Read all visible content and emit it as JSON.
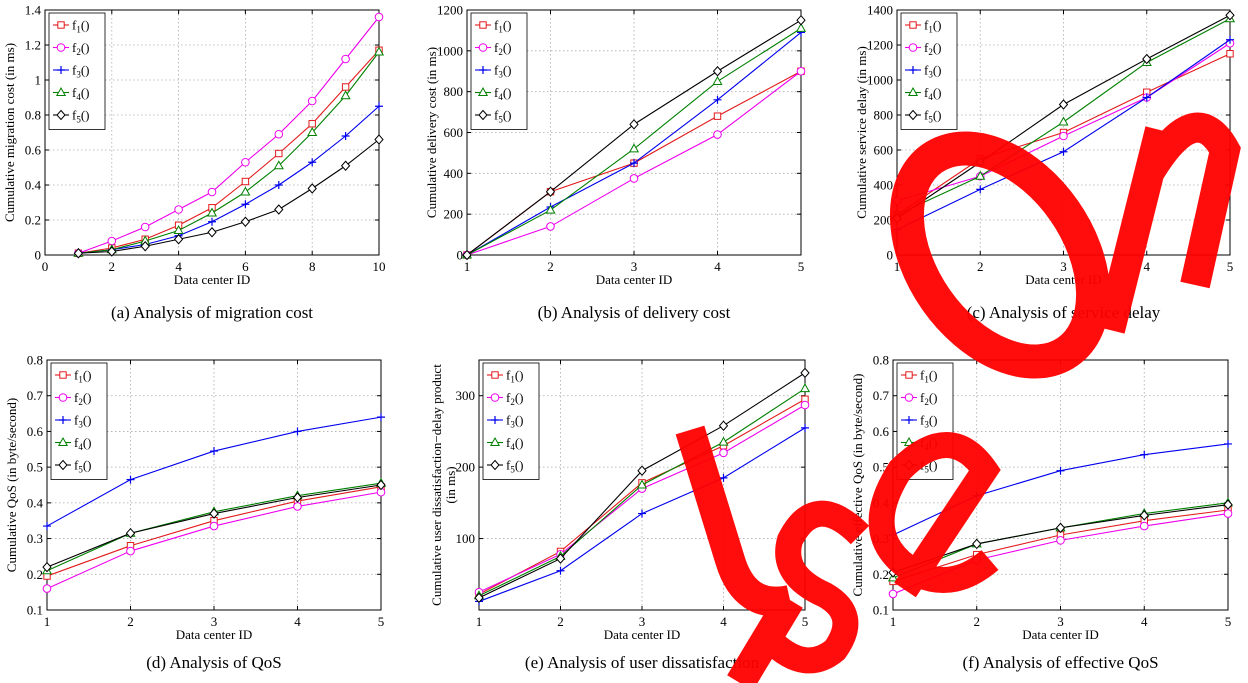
{
  "chart_data": [
    {
      "type": "line",
      "caption": "(a) Analysis of migration cost",
      "xlabel": "Data center ID",
      "ylabel": "Cumulative migration cost (in ms)",
      "xlim": [
        0,
        10
      ],
      "ylim": [
        0,
        1.4
      ],
      "xticks": [
        0,
        2,
        4,
        6,
        8,
        10
      ],
      "yticks": [
        0,
        0.2,
        0.4,
        0.6,
        0.8,
        1,
        1.2,
        1.4
      ],
      "grid": true,
      "legend": "top-left",
      "x": [
        1,
        2,
        3,
        4,
        5,
        6,
        7,
        8,
        9,
        10
      ],
      "series": [
        {
          "name": "f1()",
          "values": [
            0.01,
            0.04,
            0.09,
            0.17,
            0.27,
            0.42,
            0.58,
            0.75,
            0.96,
            1.17
          ]
        },
        {
          "name": "f2()",
          "values": [
            0.01,
            0.08,
            0.16,
            0.26,
            0.36,
            0.53,
            0.69,
            0.88,
            1.12,
            1.36
          ]
        },
        {
          "name": "f3()",
          "values": [
            0.01,
            0.03,
            0.06,
            0.11,
            0.19,
            0.29,
            0.4,
            0.53,
            0.68,
            0.85
          ]
        },
        {
          "name": "f4()",
          "values": [
            0.01,
            0.03,
            0.08,
            0.14,
            0.24,
            0.36,
            0.51,
            0.7,
            0.91,
            1.16
          ]
        },
        {
          "name": "f5()",
          "values": [
            0.01,
            0.02,
            0.05,
            0.09,
            0.13,
            0.19,
            0.26,
            0.38,
            0.51,
            0.66
          ]
        }
      ]
    },
    {
      "type": "line",
      "caption": "(b) Analysis of delivery cost",
      "xlabel": "Data center ID",
      "ylabel": "Cumulative delivery cost (in ms)",
      "xlim": [
        1,
        5
      ],
      "ylim": [
        0,
        1200
      ],
      "xticks": [
        1,
        2,
        3,
        4,
        5
      ],
      "yticks": [
        0,
        200,
        400,
        600,
        800,
        1000,
        1200
      ],
      "grid": true,
      "legend": "top-left",
      "x": [
        1,
        2,
        3,
        4,
        5
      ],
      "series": [
        {
          "name": "f1()",
          "values": [
            0,
            310,
            450,
            680,
            900
          ]
        },
        {
          "name": "f2()",
          "values": [
            0,
            140,
            375,
            590,
            900
          ]
        },
        {
          "name": "f3()",
          "values": [
            0,
            235,
            450,
            760,
            1090
          ]
        },
        {
          "name": "f4()",
          "values": [
            0,
            220,
            520,
            850,
            1110
          ]
        },
        {
          "name": "f5()",
          "values": [
            0,
            310,
            640,
            900,
            1150
          ]
        }
      ]
    },
    {
      "type": "line",
      "caption": "(c) Analysis of service delay",
      "xlabel": "Data center ID",
      "ylabel": "Cumulative service delay (in ms)",
      "xlim": [
        1,
        5
      ],
      "ylim": [
        0,
        1400
      ],
      "xticks": [
        1,
        2,
        3,
        4,
        5
      ],
      "yticks": [
        0,
        200,
        400,
        600,
        800,
        1000,
        1200,
        1400
      ],
      "grid": true,
      "legend": "top-left",
      "x": [
        1,
        2,
        3,
        4,
        5
      ],
      "series": [
        {
          "name": "f1()",
          "values": [
            230,
            550,
            700,
            930,
            1150
          ]
        },
        {
          "name": "f2()",
          "values": [
            310,
            450,
            680,
            900,
            1210
          ]
        },
        {
          "name": "f3()",
          "values": [
            145,
            375,
            590,
            900,
            1230
          ]
        },
        {
          "name": "f4()",
          "values": [
            230,
            450,
            760,
            1100,
            1350
          ]
        },
        {
          "name": "f5()",
          "values": [
            210,
            530,
            860,
            1120,
            1370
          ]
        }
      ]
    },
    {
      "type": "line",
      "caption": "(d) Analysis of QoS",
      "xlabel": "Data center ID",
      "ylabel": "Cumulative QoS (in byte/second)",
      "xlim": [
        1,
        5
      ],
      "ylim": [
        0.1,
        0.8
      ],
      "xticks": [
        1,
        2,
        3,
        4,
        5
      ],
      "yticks": [
        0.1,
        0.2,
        0.3,
        0.4,
        0.5,
        0.6,
        0.7,
        0.8
      ],
      "grid": true,
      "legend": "top-left",
      "x": [
        1,
        2,
        3,
        4,
        5
      ],
      "series": [
        {
          "name": "f1()",
          "values": [
            0.195,
            0.28,
            0.35,
            0.405,
            0.445
          ]
        },
        {
          "name": "f2()",
          "values": [
            0.16,
            0.265,
            0.335,
            0.39,
            0.43
          ]
        },
        {
          "name": "f3()",
          "values": [
            0.335,
            0.465,
            0.545,
            0.6,
            0.64
          ]
        },
        {
          "name": "f4()",
          "values": [
            0.21,
            0.315,
            0.375,
            0.42,
            0.455
          ]
        },
        {
          "name": "f5()",
          "values": [
            0.22,
            0.315,
            0.37,
            0.415,
            0.45
          ]
        }
      ]
    },
    {
      "type": "line",
      "caption": "(e) Analysis of user dissatisfaction",
      "xlabel": "Data center ID",
      "ylabel": [
        "Cumulative user dissatisfaction−delay product",
        "(in ms)"
      ],
      "xlim": [
        1,
        5
      ],
      "ylim": [
        0,
        350
      ],
      "xticks": [
        1,
        2,
        3,
        4,
        5
      ],
      "yticks": [
        100,
        200,
        300
      ],
      "grid": true,
      "legend": "top-left",
      "x": [
        1,
        2,
        3,
        4,
        5
      ],
      "series": [
        {
          "name": "f1()",
          "values": [
            22,
            82,
            178,
            230,
            295
          ]
        },
        {
          "name": "f2()",
          "values": [
            25,
            78,
            170,
            220,
            287
          ]
        },
        {
          "name": "f3()",
          "values": [
            12,
            55,
            135,
            185,
            255
          ]
        },
        {
          "name": "f4()",
          "values": [
            20,
            75,
            175,
            235,
            310
          ]
        },
        {
          "name": "f5()",
          "values": [
            17,
            72,
            195,
            258,
            332
          ]
        }
      ]
    },
    {
      "type": "line",
      "caption": "(f) Analysis of effective QoS",
      "xlabel": "Data center ID",
      "ylabel": "Cumulative effective QoS (in byte/second)",
      "xlim": [
        1,
        5
      ],
      "ylim": [
        0.1,
        0.8
      ],
      "xticks": [
        1,
        2,
        3,
        4,
        5
      ],
      "yticks": [
        0.1,
        0.2,
        0.3,
        0.4,
        0.5,
        0.6,
        0.7,
        0.8
      ],
      "grid": true,
      "legend": "top-left",
      "x": [
        1,
        2,
        3,
        4,
        5
      ],
      "series": [
        {
          "name": "f1()",
          "values": [
            0.18,
            0.255,
            0.31,
            0.35,
            0.38
          ]
        },
        {
          "name": "f2()",
          "values": [
            0.145,
            0.24,
            0.295,
            0.335,
            0.37
          ]
        },
        {
          "name": "f3()",
          "values": [
            0.31,
            0.42,
            0.49,
            0.535,
            0.565
          ]
        },
        {
          "name": "f4()",
          "values": [
            0.19,
            0.285,
            0.33,
            0.37,
            0.4
          ]
        },
        {
          "name": "f5()",
          "values": [
            0.205,
            0.285,
            0.33,
            0.365,
            0.395
          ]
        }
      ]
    }
  ],
  "series_style": [
    {
      "color": "#e31a1c",
      "marker": "square"
    },
    {
      "color": "#ee00ee",
      "marker": "circle"
    },
    {
      "color": "#0000ee",
      "marker": "plus"
    },
    {
      "color": "#008000",
      "marker": "triangle"
    },
    {
      "color": "#000000",
      "marker": "diamond"
    }
  ],
  "watermark": {
    "text": "Use Only",
    "color": "#ff0000"
  }
}
